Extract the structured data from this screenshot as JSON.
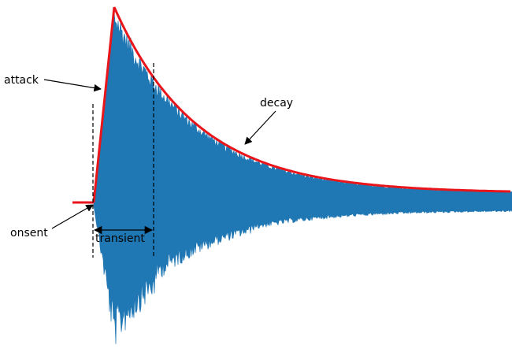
{
  "labels": {
    "attack": "attack",
    "decay": "decay",
    "onsent": "onsent",
    "transient": "transient"
  },
  "colors": {
    "waveform": "#1f77b4",
    "envelope": "#e8161b",
    "annotation": "#000000"
  }
}
